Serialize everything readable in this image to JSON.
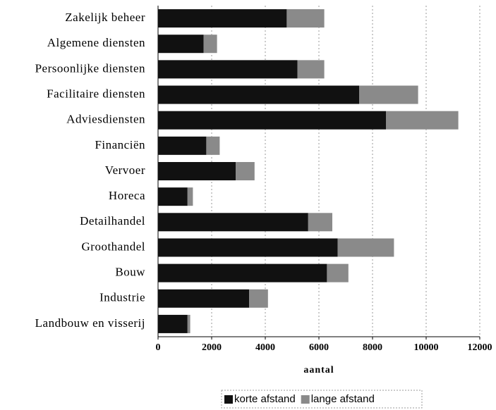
{
  "chart_data": {
    "type": "stacked_barh",
    "x_label": "aantal",
    "categories": [
      "Zakelijk beheer",
      "Algemene diensten",
      "Persoonlijke diensten",
      "Facilitaire diensten",
      "Adviesdiensten",
      "Financiën",
      "Vervoer",
      "Horeca",
      "Detailhandel",
      "Groothandel",
      "Bouw",
      "Industrie",
      "Landbouw en visserij"
    ],
    "series": [
      {
        "name": "korte afstand",
        "color": "#111111",
        "values": [
          4800,
          1700,
          5200,
          7500,
          8500,
          1800,
          2900,
          1100,
          5600,
          6700,
          6300,
          3400,
          1100
        ]
      },
      {
        "name": "lange afstand",
        "color": "#8a8a8a",
        "values": [
          1400,
          500,
          1000,
          2200,
          2700,
          500,
          700,
          200,
          900,
          2100,
          800,
          700,
          100
        ]
      }
    ],
    "xlim": [
      0,
      12000
    ],
    "xticks": [
      0,
      2000,
      4000,
      6000,
      8000,
      10000,
      12000
    ],
    "grid": true,
    "legend": "bottom"
  }
}
